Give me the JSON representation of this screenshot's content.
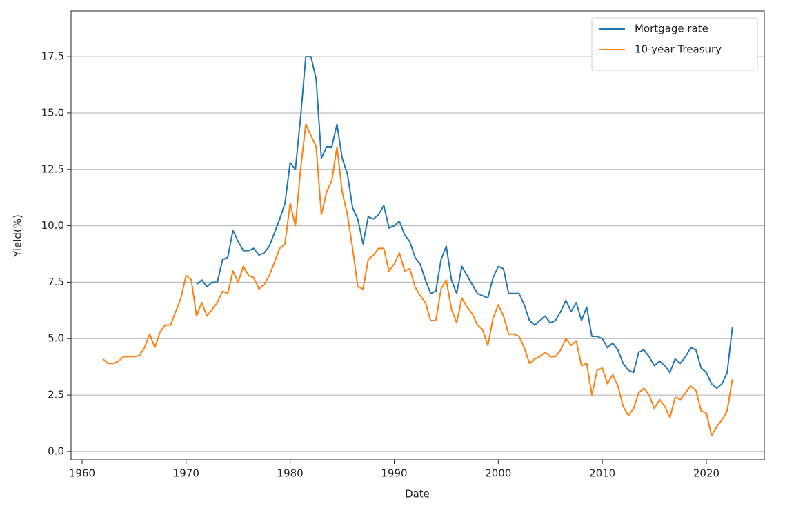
{
  "chart_data": {
    "type": "line",
    "xlabel": "Date",
    "ylabel": "Yield(%)",
    "x": [
      1962,
      1962.5,
      1963,
      1963.5,
      1964,
      1964.5,
      1965,
      1965.5,
      1966,
      1966.5,
      1967,
      1967.5,
      1968,
      1968.5,
      1969,
      1969.5,
      1970,
      1970.5,
      1971,
      1971.5,
      1972,
      1972.5,
      1973,
      1973.5,
      1974,
      1974.5,
      1975,
      1975.5,
      1976,
      1976.5,
      1977,
      1977.5,
      1978,
      1978.5,
      1979,
      1979.5,
      1980,
      1980.5,
      1981,
      1981.5,
      1982,
      1982.5,
      1983,
      1983.5,
      1984,
      1984.5,
      1985,
      1985.5,
      1986,
      1986.5,
      1987,
      1987.5,
      1988,
      1988.5,
      1989,
      1989.5,
      1990,
      1990.5,
      1991,
      1991.5,
      1992,
      1992.5,
      1993,
      1993.5,
      1994,
      1994.5,
      1995,
      1995.5,
      1996,
      1996.5,
      1997,
      1997.5,
      1998,
      1998.5,
      1999,
      1999.5,
      2000,
      2000.5,
      2001,
      2001.5,
      2002,
      2002.5,
      2003,
      2003.5,
      2004,
      2004.5,
      2005,
      2005.5,
      2006,
      2006.5,
      2007,
      2007.5,
      2008,
      2008.5,
      2009,
      2009.5,
      2010,
      2010.5,
      2011,
      2011.5,
      2012,
      2012.5,
      2013,
      2013.5,
      2014,
      2014.5,
      2015,
      2015.5,
      2016,
      2016.5,
      2017,
      2017.5,
      2018,
      2018.5,
      2019,
      2019.5,
      2020,
      2020.5,
      2021,
      2021.5,
      2022,
      2022.5
    ],
    "series": [
      {
        "name": "Mortgage rate",
        "color": "#1f77b4",
        "values": [
          null,
          null,
          null,
          null,
          null,
          null,
          null,
          null,
          null,
          null,
          null,
          null,
          null,
          null,
          null,
          null,
          null,
          null,
          7.4,
          7.6,
          7.3,
          7.5,
          7.5,
          8.5,
          8.6,
          9.8,
          9.3,
          8.9,
          8.9,
          9.0,
          8.7,
          8.8,
          9.1,
          9.7,
          10.3,
          11.0,
          12.8,
          12.5,
          14.8,
          17.5,
          17.5,
          16.5,
          13.0,
          13.5,
          13.5,
          14.5,
          13.0,
          12.3,
          10.8,
          10.3,
          9.2,
          10.4,
          10.3,
          10.5,
          10.9,
          9.9,
          10.0,
          10.2,
          9.6,
          9.3,
          8.6,
          8.3,
          7.6,
          7.0,
          7.1,
          8.5,
          9.1,
          7.6,
          7.0,
          8.2,
          7.8,
          7.4,
          7.0,
          6.9,
          6.8,
          7.7,
          8.2,
          8.1,
          7.0,
          7.0,
          7.0,
          6.5,
          5.8,
          5.6,
          5.8,
          6.0,
          5.7,
          5.8,
          6.2,
          6.7,
          6.2,
          6.6,
          5.8,
          6.4,
          5.1,
          5.1,
          5.0,
          4.6,
          4.8,
          4.5,
          3.9,
          3.6,
          3.5,
          4.4,
          4.5,
          4.2,
          3.8,
          4.0,
          3.8,
          3.5,
          4.1,
          3.9,
          4.2,
          4.6,
          4.5,
          3.7,
          3.5,
          3.0,
          2.8,
          3.0,
          3.5,
          5.5
        ]
      },
      {
        "name": "10-year Treasury",
        "color": "#ff7f0e",
        "values": [
          4.1,
          3.9,
          3.9,
          4.0,
          4.2,
          4.2,
          4.2,
          4.25,
          4.6,
          5.2,
          4.6,
          5.3,
          5.6,
          5.6,
          6.2,
          6.8,
          7.8,
          7.6,
          6.0,
          6.6,
          6.0,
          6.3,
          6.6,
          7.1,
          7.0,
          8.0,
          7.5,
          8.2,
          7.8,
          7.7,
          7.2,
          7.4,
          7.8,
          8.4,
          9.0,
          9.2,
          11.0,
          10.0,
          12.5,
          14.5,
          14.0,
          13.5,
          10.5,
          11.5,
          12.0,
          13.5,
          11.5,
          10.5,
          9.0,
          7.3,
          7.2,
          8.5,
          8.7,
          9.0,
          9.0,
          8.0,
          8.3,
          8.8,
          8.0,
          8.1,
          7.3,
          6.9,
          6.6,
          5.8,
          5.8,
          7.2,
          7.6,
          6.3,
          5.7,
          6.8,
          6.4,
          6.1,
          5.6,
          5.4,
          4.7,
          5.9,
          6.5,
          6.0,
          5.2,
          5.2,
          5.1,
          4.6,
          3.9,
          4.1,
          4.2,
          4.4,
          4.2,
          4.2,
          4.5,
          5.0,
          4.7,
          4.9,
          3.8,
          3.9,
          2.5,
          3.6,
          3.7,
          3.0,
          3.4,
          2.9,
          2.0,
          1.6,
          1.9,
          2.6,
          2.8,
          2.5,
          1.9,
          2.3,
          2.0,
          1.5,
          2.4,
          2.3,
          2.6,
          2.9,
          2.7,
          1.8,
          1.7,
          0.7,
          1.1,
          1.4,
          1.8,
          3.2
        ]
      }
    ],
    "xlim": [
      1958.94,
      2025.57
    ],
    "xticks": [
      1960,
      1970,
      1980,
      1990,
      2000,
      2010,
      2020
    ],
    "ylim": [
      -0.37,
      19.52
    ],
    "yticks": [
      {
        "value": 0,
        "label": "0.0"
      },
      {
        "value": 2.5,
        "label": "2.5"
      },
      {
        "value": 5,
        "label": "5.0"
      },
      {
        "value": 7.5,
        "label": "7.5"
      },
      {
        "value": 10,
        "label": "10.0"
      },
      {
        "value": 12.5,
        "label": "12.5"
      },
      {
        "value": 15,
        "label": "15.0"
      },
      {
        "value": 17.5,
        "label": "17.5"
      }
    ],
    "grid": "y",
    "legend": "upper right"
  }
}
